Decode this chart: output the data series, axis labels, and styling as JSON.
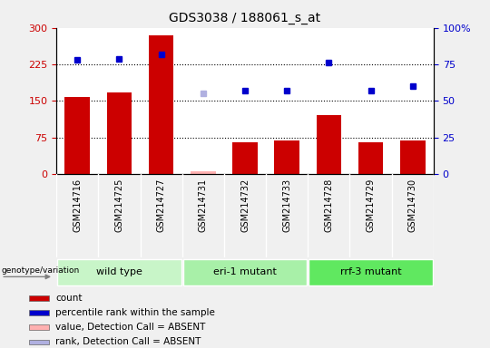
{
  "title": "GDS3038 / 188061_s_at",
  "samples": [
    "GSM214716",
    "GSM214725",
    "GSM214727",
    "GSM214731",
    "GSM214732",
    "GSM214733",
    "GSM214728",
    "GSM214729",
    "GSM214730"
  ],
  "counts": [
    158,
    168,
    285,
    5,
    65,
    68,
    120,
    65,
    68
  ],
  "percentile_ranks": [
    78,
    79,
    82,
    55,
    57,
    57,
    76,
    57,
    60
  ],
  "absent_mask": [
    false,
    false,
    false,
    true,
    false,
    false,
    false,
    false,
    false
  ],
  "genotype_groups": [
    {
      "label": "wild type",
      "start": 0,
      "end": 3,
      "color": "#c8f5c8"
    },
    {
      "label": "eri-1 mutant",
      "start": 3,
      "end": 6,
      "color": "#a8f0a8"
    },
    {
      "label": "rrf-3 mutant",
      "start": 6,
      "end": 9,
      "color": "#60e860"
    }
  ],
  "ylim_left": [
    0,
    300
  ],
  "ylim_right": [
    0,
    100
  ],
  "yticks_left": [
    0,
    75,
    150,
    225,
    300
  ],
  "yticks_right": [
    0,
    25,
    50,
    75,
    100
  ],
  "bar_color_normal": "#cc0000",
  "bar_color_absent": "#ffb0b0",
  "dot_color_normal": "#0000cc",
  "dot_color_absent": "#b0b0e0",
  "plot_bg_color": "#ffffff",
  "xtick_bg_color": "#d8d8d8",
  "fig_bg_color": "#f0f0f0",
  "left_yaxis_color": "#cc0000",
  "right_yaxis_color": "#0000cc",
  "legend_items": [
    {
      "label": "count",
      "color": "#cc0000"
    },
    {
      "label": "percentile rank within the sample",
      "color": "#0000cc"
    },
    {
      "label": "value, Detection Call = ABSENT",
      "color": "#ffb0b0"
    },
    {
      "label": "rank, Detection Call = ABSENT",
      "color": "#b0b0e0"
    }
  ]
}
